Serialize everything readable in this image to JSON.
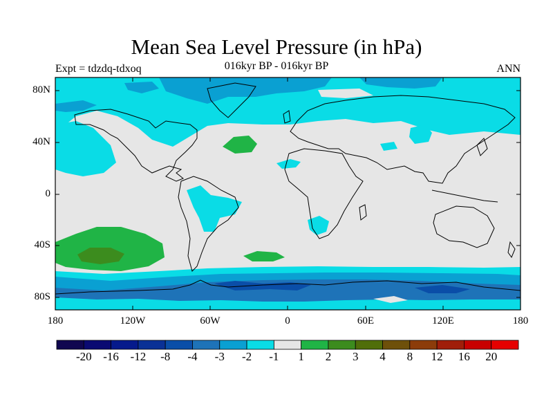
{
  "header": {
    "title": "Mean Sea Level Pressure (in hPa)",
    "subtitle": "016kyr BP - 016kyr BP",
    "experiment": "Expt = tdzdq-tdxoq",
    "season": "ANN"
  },
  "map": {
    "projection": "cylindrical equidistant",
    "lon_range": [
      -180,
      180
    ],
    "lat_range": [
      -90,
      90
    ],
    "y_axis_labels": [
      "80N",
      "40N",
      "0",
      "40S",
      "80S"
    ],
    "x_axis_labels": [
      "180",
      "120W",
      "60W",
      "0",
      "60E",
      "120E",
      "180"
    ],
    "background_color": "#e6e6e6"
  },
  "colorbar": {
    "labels": [
      "-20",
      "-16",
      "-12",
      "-8",
      "-4",
      "-3",
      "-2",
      "-1",
      "1",
      "2",
      "3",
      "4",
      "8",
      "12",
      "16",
      "20"
    ],
    "colors": [
      "#100750",
      "#0a0a72",
      "#061a8c",
      "#0a3196",
      "#0a4ea8",
      "#1e73b8",
      "#0aa0d2",
      "#0adce6",
      "#e6e6e6",
      "#20b446",
      "#3c8c1e",
      "#506e0a",
      "#6e500a",
      "#8c3c0a",
      "#a01e0a",
      "#c80000",
      "#e60000"
    ]
  }
}
